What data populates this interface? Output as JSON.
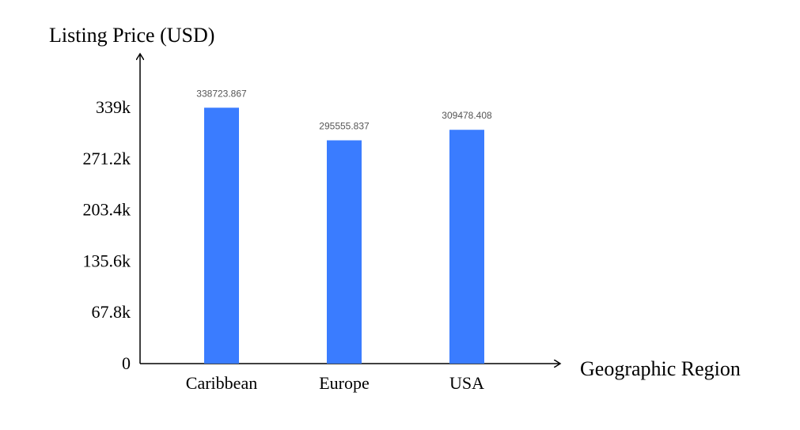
{
  "chart_data": {
    "type": "bar",
    "xlabel": "Geographic Region",
    "ylabel": "Listing Price (USD)",
    "categories": [
      "Caribbean",
      "Europe",
      "USA"
    ],
    "values": [
      338723.867,
      295555.837,
      309478.408
    ],
    "data_labels": [
      "338723.867",
      "295555.837",
      "309478.408"
    ],
    "yticks": [
      0,
      67800,
      135600,
      203400,
      271200,
      339000
    ],
    "ytick_labels": [
      "0",
      "67.8k",
      "135.6k",
      "203.4k",
      "271.2k",
      "339k"
    ],
    "ylim": [
      0,
      339000
    ],
    "grid": false,
    "bar_color": "#3a7cff",
    "axis_color": "#000000"
  }
}
